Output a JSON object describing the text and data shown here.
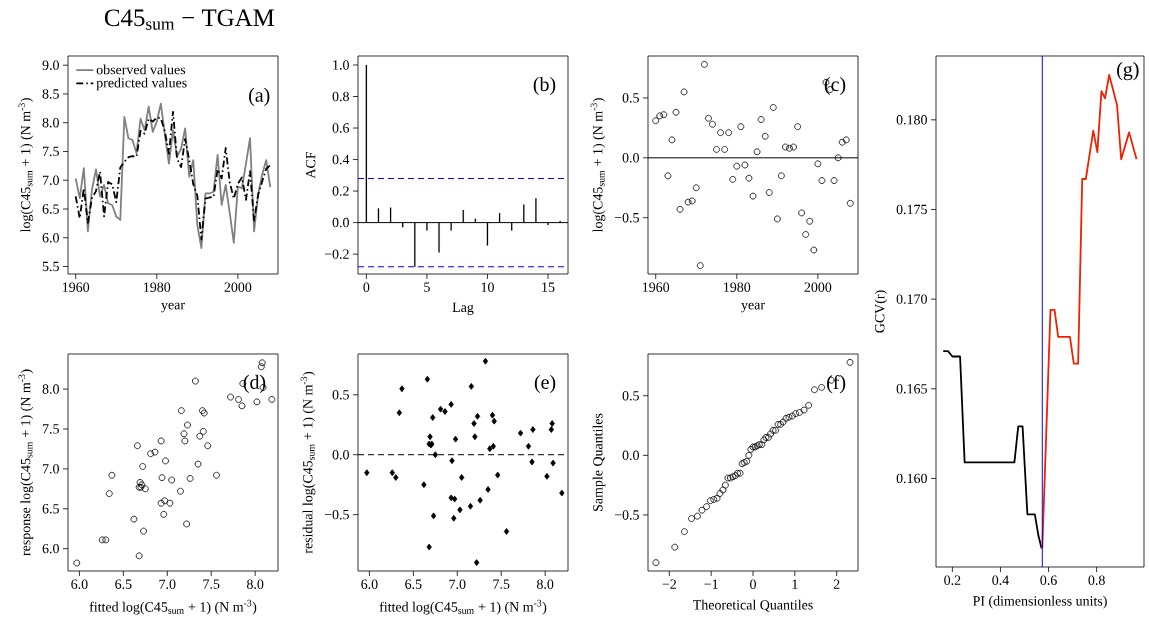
{
  "chart_data": [
    {
      "type": "line",
      "title": "C45$_{sum}$ − TGAM",
      "xlabel": "year",
      "ylabel": "log(C45$_{sum}$ + 1)  (N m$^{-3}$)",
      "xlim": [
        1958.1,
        2009.9
      ],
      "ylim": [
        5.37,
        9.16
      ],
      "xticks": [
        1960,
        1980,
        2000
      ],
      "yticks": [
        5.5,
        {
          "value": 6,
          "label": "6.0"
        },
        6.5,
        {
          "value": 7,
          "label": "7.0"
        },
        7.5,
        {
          "value": 8,
          "label": "8.0"
        },
        8.5,
        {
          "value": 9,
          "label": "9.0"
        }
      ],
      "legend": "top left",
      "annotations": [
        "(a)"
      ],
      "x": [
        1960,
        1961,
        1962,
        1963,
        1964,
        1965,
        1966,
        1967,
        1968,
        1969,
        1970,
        1971,
        1972,
        1973,
        1974,
        1975,
        1976,
        1977,
        1978,
        1979,
        1980,
        1981,
        1982,
        1983,
        1984,
        1985,
        1986,
        1987,
        1988,
        1989,
        1990,
        1991,
        1992,
        1993,
        1994,
        1995,
        1996,
        1997,
        1998,
        1999,
        2000,
        2001,
        2002,
        2003,
        2004,
        2005,
        2006,
        2007,
        2008
      ],
      "series": [
        {
          "name": "observed values",
          "color": "#808080",
          "line_style": "solid",
          "values": [
            7.03,
            6.69,
            7.21,
            6.11,
            6.83,
            7.19,
            6.72,
            6.92,
            6.6,
            6.57,
            6.37,
            6.31,
            8.1,
            7.73,
            7.7,
            7.47,
            8.07,
            7.87,
            8.28,
            7.84,
            8.02,
            8.33,
            7.79,
            7.29,
            7.87,
            7.41,
            7.55,
            7.9,
            7.06,
            7.35,
            6.22,
            5.82,
            6.77,
            6.77,
            6.8,
            7.44,
            6.57,
            6.92,
            6.43,
            5.91,
            6.89,
            6.86,
            7.29,
            7.73,
            6.11,
            6.75,
            7.1,
            7.35,
            6.88
          ]
        },
        {
          "name": "predicted values",
          "color": "#000000",
          "line_style": "dashed",
          "values": [
            6.72,
            6.34,
            6.86,
            6.26,
            6.69,
            6.81,
            7.15,
            6.37,
            6.97,
            6.93,
            6.62,
            7.22,
            7.32,
            7.4,
            7.42,
            7.41,
            7.86,
            7.81,
            8.07,
            8.02,
            8.09,
            8.08,
            7.85,
            7.46,
            8.19,
            7.37,
            7.23,
            7.72,
            7.35,
            6.93,
            6.73,
            5.97,
            6.68,
            6.7,
            6.71,
            7.19,
            7.03,
            7.56,
            6.96,
            6.68,
            6.94,
            7.05,
            6.66,
            7.16,
            6.3,
            6.75,
            6.98,
            7.2,
            7.26
          ]
        }
      ]
    },
    {
      "type": "bar",
      "xlabel": "Lag",
      "ylabel": "ACF",
      "xlim": [
        -0.69,
        16.65
      ],
      "ylim": [
        -0.326,
        1.057
      ],
      "xticks": [
        0,
        5,
        10,
        15
      ],
      "yticks": [
        {
          "value": -0.2,
          "label": "−0.2"
        },
        {
          "value": 0,
          "label": "0.0"
        },
        0.2,
        0.4,
        0.6,
        0.8,
        {
          "value": 1,
          "label": "1.0"
        }
      ],
      "annotations": [
        "(b)"
      ],
      "ref_lines": [
        {
          "axis": "y",
          "value": 0,
          "color": "#000000",
          "line_style": "solid"
        },
        {
          "axis": "y",
          "value": 0.28,
          "color": "#0000ff",
          "line_style": "dashed"
        },
        {
          "axis": "y",
          "value": -0.28,
          "color": "#0000ff",
          "line_style": "dashed"
        }
      ],
      "x": [
        0,
        1,
        2,
        3,
        4,
        5,
        6,
        7,
        8,
        9,
        10,
        11,
        12,
        13,
        14,
        15,
        16
      ],
      "series": [
        {
          "color": "#000000",
          "values": [
            1.0,
            0.09,
            0.095,
            -0.03,
            -0.28,
            -0.05,
            -0.19,
            -0.05,
            0.08,
            0.025,
            -0.145,
            0.06,
            -0.05,
            0.115,
            0.155,
            -0.015,
            0.01
          ]
        }
      ]
    },
    {
      "type": "scatter",
      "xlabel": "year",
      "ylabel": "log(C45$_{sum}$ + 1)  (N m$^{-3}$)",
      "xlim": [
        1958.1,
        2009.9
      ],
      "ylim": [
        -0.97,
        0.85
      ],
      "xticks": [
        1960,
        1980,
        2000
      ],
      "yticks": [
        {
          "value": -0.5,
          "label": "−0.5"
        },
        {
          "value": 0,
          "label": "0.0"
        },
        0.5
      ],
      "marker": "circle",
      "annotations": [
        "(c)"
      ],
      "ref_lines": [
        {
          "axis": "y",
          "value": 0,
          "color": "#000000",
          "line_style": "solid"
        }
      ],
      "x": [
        1960,
        1961,
        1962,
        1963,
        1964,
        1965,
        1966,
        1967,
        1968,
        1969,
        1970,
        1971,
        1972,
        1973,
        1974,
        1975,
        1976,
        1977,
        1978,
        1979,
        1980,
        1981,
        1982,
        1983,
        1984,
        1985,
        1986,
        1987,
        1988,
        1989,
        1990,
        1991,
        1992,
        1993,
        1994,
        1995,
        1996,
        1997,
        1998,
        1999,
        2000,
        2001,
        2002,
        2003,
        2004,
        2005,
        2006,
        2007,
        2008
      ],
      "series": [
        {
          "color": "#000000",
          "values": [
            0.31,
            0.35,
            0.36,
            -0.15,
            0.15,
            0.38,
            -0.43,
            0.55,
            -0.37,
            -0.36,
            -0.25,
            -0.9,
            0.78,
            0.33,
            0.28,
            0.07,
            0.21,
            0.07,
            0.21,
            -0.18,
            -0.07,
            0.26,
            -0.06,
            -0.17,
            -0.32,
            0.05,
            0.32,
            0.18,
            -0.29,
            0.42,
            -0.51,
            -0.15,
            0.09,
            0.08,
            0.09,
            0.26,
            -0.46,
            -0.64,
            -0.53,
            -0.77,
            -0.05,
            -0.19,
            0.63,
            0.57,
            -0.19,
            0.0,
            0.13,
            0.15,
            -0.38
          ]
        }
      ]
    },
    {
      "type": "scatter",
      "xlabel": "fitted  log(C45$_{sum}$ + 1)  (N m$^{-3}$)",
      "ylabel": "response  log(C45$_{sum}$ + 1)  (N m$^{-3}$)",
      "xlim": [
        5.87,
        8.26
      ],
      "ylim": [
        5.72,
        8.44
      ],
      "xticks": [
        {
          "value": 6,
          "label": "6.0"
        },
        6.5,
        {
          "value": 7,
          "label": "7.0"
        },
        7.5,
        {
          "value": 8,
          "label": "8.0"
        }
      ],
      "yticks": [
        {
          "value": 6,
          "label": "6.0"
        },
        6.5,
        {
          "value": 7,
          "label": "7.0"
        },
        7.5,
        {
          "value": 8,
          "label": "8.0"
        }
      ],
      "marker": "circle",
      "annotations": [
        "(d)"
      ],
      "x": [
        6.72,
        6.34,
        6.86,
        6.26,
        6.69,
        6.81,
        7.15,
        6.37,
        6.97,
        6.93,
        6.62,
        7.22,
        7.32,
        7.4,
        7.42,
        7.41,
        7.86,
        7.81,
        8.07,
        8.02,
        8.09,
        8.08,
        7.85,
        7.46,
        8.19,
        7.37,
        7.23,
        7.72,
        7.35,
        6.93,
        6.73,
        5.97,
        6.68,
        6.7,
        6.71,
        7.19,
        7.03,
        7.56,
        6.96,
        6.68,
        6.94,
        7.05,
        6.66,
        7.16,
        6.3,
        6.75,
        6.98,
        7.2,
        7.26
      ],
      "series": [
        {
          "color": "#000000",
          "values": [
            7.03,
            6.69,
            7.21,
            6.11,
            6.83,
            7.19,
            6.72,
            6.92,
            6.6,
            6.57,
            6.37,
            6.31,
            8.1,
            7.73,
            7.7,
            7.47,
            8.07,
            7.87,
            8.28,
            7.84,
            8.02,
            8.33,
            7.79,
            7.29,
            7.87,
            7.41,
            7.55,
            7.9,
            7.06,
            7.35,
            6.22,
            5.82,
            6.77,
            6.77,
            6.8,
            7.44,
            6.57,
            6.92,
            6.43,
            5.91,
            6.89,
            6.86,
            7.29,
            7.73,
            6.11,
            6.75,
            7.1,
            7.35,
            6.88
          ]
        }
      ]
    },
    {
      "type": "scatter",
      "xlabel": "fitted  log(C45$_{sum}$ + 1)  (N m$^{-3}$)",
      "ylabel": "residual  log(C45$_{sum}$ + 1)  (N m$^{-3}$)",
      "xlim": [
        5.87,
        8.26
      ],
      "ylim": [
        -0.97,
        0.84
      ],
      "xticks": [
        {
          "value": 6,
          "label": "6.0"
        },
        6.5,
        {
          "value": 7,
          "label": "7.0"
        },
        7.5,
        {
          "value": 8,
          "label": "8.0"
        }
      ],
      "yticks": [
        {
          "value": -0.5,
          "label": "−0.5"
        },
        {
          "value": 0,
          "label": "0.0"
        },
        0.5
      ],
      "marker": "diamond",
      "annotations": [
        "(e)"
      ],
      "ref_lines": [
        {
          "axis": "y",
          "value": 0,
          "color": "#000000",
          "line_style": "dashed"
        }
      ],
      "x": [
        6.72,
        6.34,
        6.86,
        6.26,
        6.69,
        6.81,
        7.15,
        6.37,
        6.97,
        6.93,
        6.62,
        7.22,
        7.32,
        7.4,
        7.42,
        7.41,
        7.86,
        7.81,
        8.07,
        8.02,
        8.09,
        8.08,
        7.85,
        7.46,
        8.19,
        7.37,
        7.23,
        7.72,
        7.35,
        6.93,
        6.73,
        5.97,
        6.68,
        6.7,
        6.71,
        7.19,
        7.03,
        7.56,
        6.96,
        6.68,
        6.94,
        7.05,
        6.66,
        7.16,
        6.3,
        6.75,
        6.98,
        7.2,
        7.26
      ],
      "series": [
        {
          "color": "#000000",
          "values": [
            0.31,
            0.35,
            0.36,
            -0.15,
            0.15,
            0.38,
            -0.43,
            0.55,
            -0.37,
            -0.36,
            -0.25,
            -0.9,
            0.78,
            0.33,
            0.28,
            0.07,
            0.21,
            0.07,
            0.21,
            -0.18,
            -0.07,
            0.26,
            -0.06,
            -0.17,
            -0.32,
            0.05,
            0.32,
            0.18,
            -0.29,
            0.42,
            -0.51,
            -0.15,
            0.09,
            0.08,
            0.09,
            0.26,
            -0.46,
            -0.64,
            -0.53,
            -0.77,
            -0.05,
            -0.19,
            0.63,
            0.57,
            -0.19,
            0.0,
            0.13,
            0.15,
            -0.38
          ]
        }
      ]
    },
    {
      "type": "scatter",
      "xlabel": "Theoretical Quantiles",
      "ylabel": "Sample Quantiles",
      "xlim": [
        -2.51,
        2.51
      ],
      "ylim": [
        -0.97,
        0.85
      ],
      "xticks": [
        {
          "value": -2,
          "label": "−2"
        },
        {
          "value": -1,
          "label": "−1"
        },
        0,
        1,
        2
      ],
      "yticks": [
        {
          "value": -0.5,
          "label": "−0.5"
        },
        {
          "value": 0,
          "label": "0.0"
        },
        0.5
      ],
      "marker": "circle",
      "annotations": [
        "(f)"
      ],
      "x": [
        -2.32,
        -1.87,
        -1.64,
        -1.47,
        -1.33,
        -1.22,
        -1.11,
        -1.02,
        -0.94,
        -0.86,
        -0.79,
        -0.72,
        -0.66,
        -0.6,
        -0.54,
        -0.48,
        -0.42,
        -0.37,
        -0.31,
        -0.26,
        -0.21,
        -0.15,
        -0.1,
        -0.05,
        0,
        0.05,
        0.1,
        0.15,
        0.21,
        0.26,
        0.31,
        0.37,
        0.42,
        0.48,
        0.54,
        0.6,
        0.66,
        0.72,
        0.79,
        0.86,
        0.94,
        1.02,
        1.11,
        1.22,
        1.33,
        1.47,
        1.64,
        1.87,
        2.32
      ],
      "series": [
        {
          "color": "#000000",
          "values": [
            -0.9,
            -0.77,
            -0.64,
            -0.53,
            -0.51,
            -0.46,
            -0.43,
            -0.38,
            -0.37,
            -0.36,
            -0.32,
            -0.29,
            -0.25,
            -0.19,
            -0.19,
            -0.18,
            -0.17,
            -0.15,
            -0.15,
            -0.07,
            -0.06,
            -0.05,
            0.0,
            0.05,
            0.07,
            0.07,
            0.08,
            0.09,
            0.09,
            0.13,
            0.15,
            0.15,
            0.18,
            0.21,
            0.21,
            0.26,
            0.26,
            0.28,
            0.31,
            0.32,
            0.33,
            0.35,
            0.36,
            0.38,
            0.42,
            0.55,
            0.57,
            0.63,
            0.78
          ]
        }
      ]
    },
    {
      "type": "line",
      "xlabel": "PI (dimensionless units)",
      "ylabel": "GCV(r)",
      "xlim": [
        0.132,
        0.997
      ],
      "ylim": [
        0.15506,
        0.18356
      ],
      "xticks": [
        0.2,
        0.4,
        0.6,
        0.8
      ],
      "yticks": [
        {
          "value": 0.16,
          "label": "0.160"
        },
        0.165,
        {
          "value": 0.17,
          "label": "0.170"
        },
        0.175,
        {
          "value": 0.18,
          "label": "0.180"
        }
      ],
      "annotations": [
        "(g)"
      ],
      "ref_lines": [
        {
          "axis": "x",
          "value": 0.574,
          "color": "#0000ff",
          "line_style": "solid"
        }
      ],
      "series": [
        {
          "color": "#000000",
          "x": [
            0.162,
            0.182,
            0.2,
            0.232,
            0.251,
            0.458,
            0.474,
            0.492,
            0.512,
            0.543,
            0.558,
            0.571
          ],
          "values": [
            0.1671,
            0.1671,
            0.1668,
            0.1668,
            0.1609,
            0.1609,
            0.1629,
            0.1629,
            0.158,
            0.158,
            0.1568,
            0.1561
          ]
        },
        {
          "color": "#ee2200",
          "x": [
            0.574,
            0.608,
            0.625,
            0.64,
            0.689,
            0.705,
            0.723,
            0.74,
            0.755,
            0.786,
            0.803,
            0.82,
            0.835,
            0.852,
            0.866,
            0.885,
            0.902,
            0.935,
            0.966
          ],
          "values": [
            0.1561,
            0.1694,
            0.1694,
            0.1679,
            0.1679,
            0.1664,
            0.1664,
            0.1767,
            0.1767,
            0.1794,
            0.1782,
            0.1816,
            0.1812,
            0.1825,
            0.1818,
            0.1808,
            0.1778,
            0.1793,
            0.1778
          ]
        }
      ]
    }
  ]
}
